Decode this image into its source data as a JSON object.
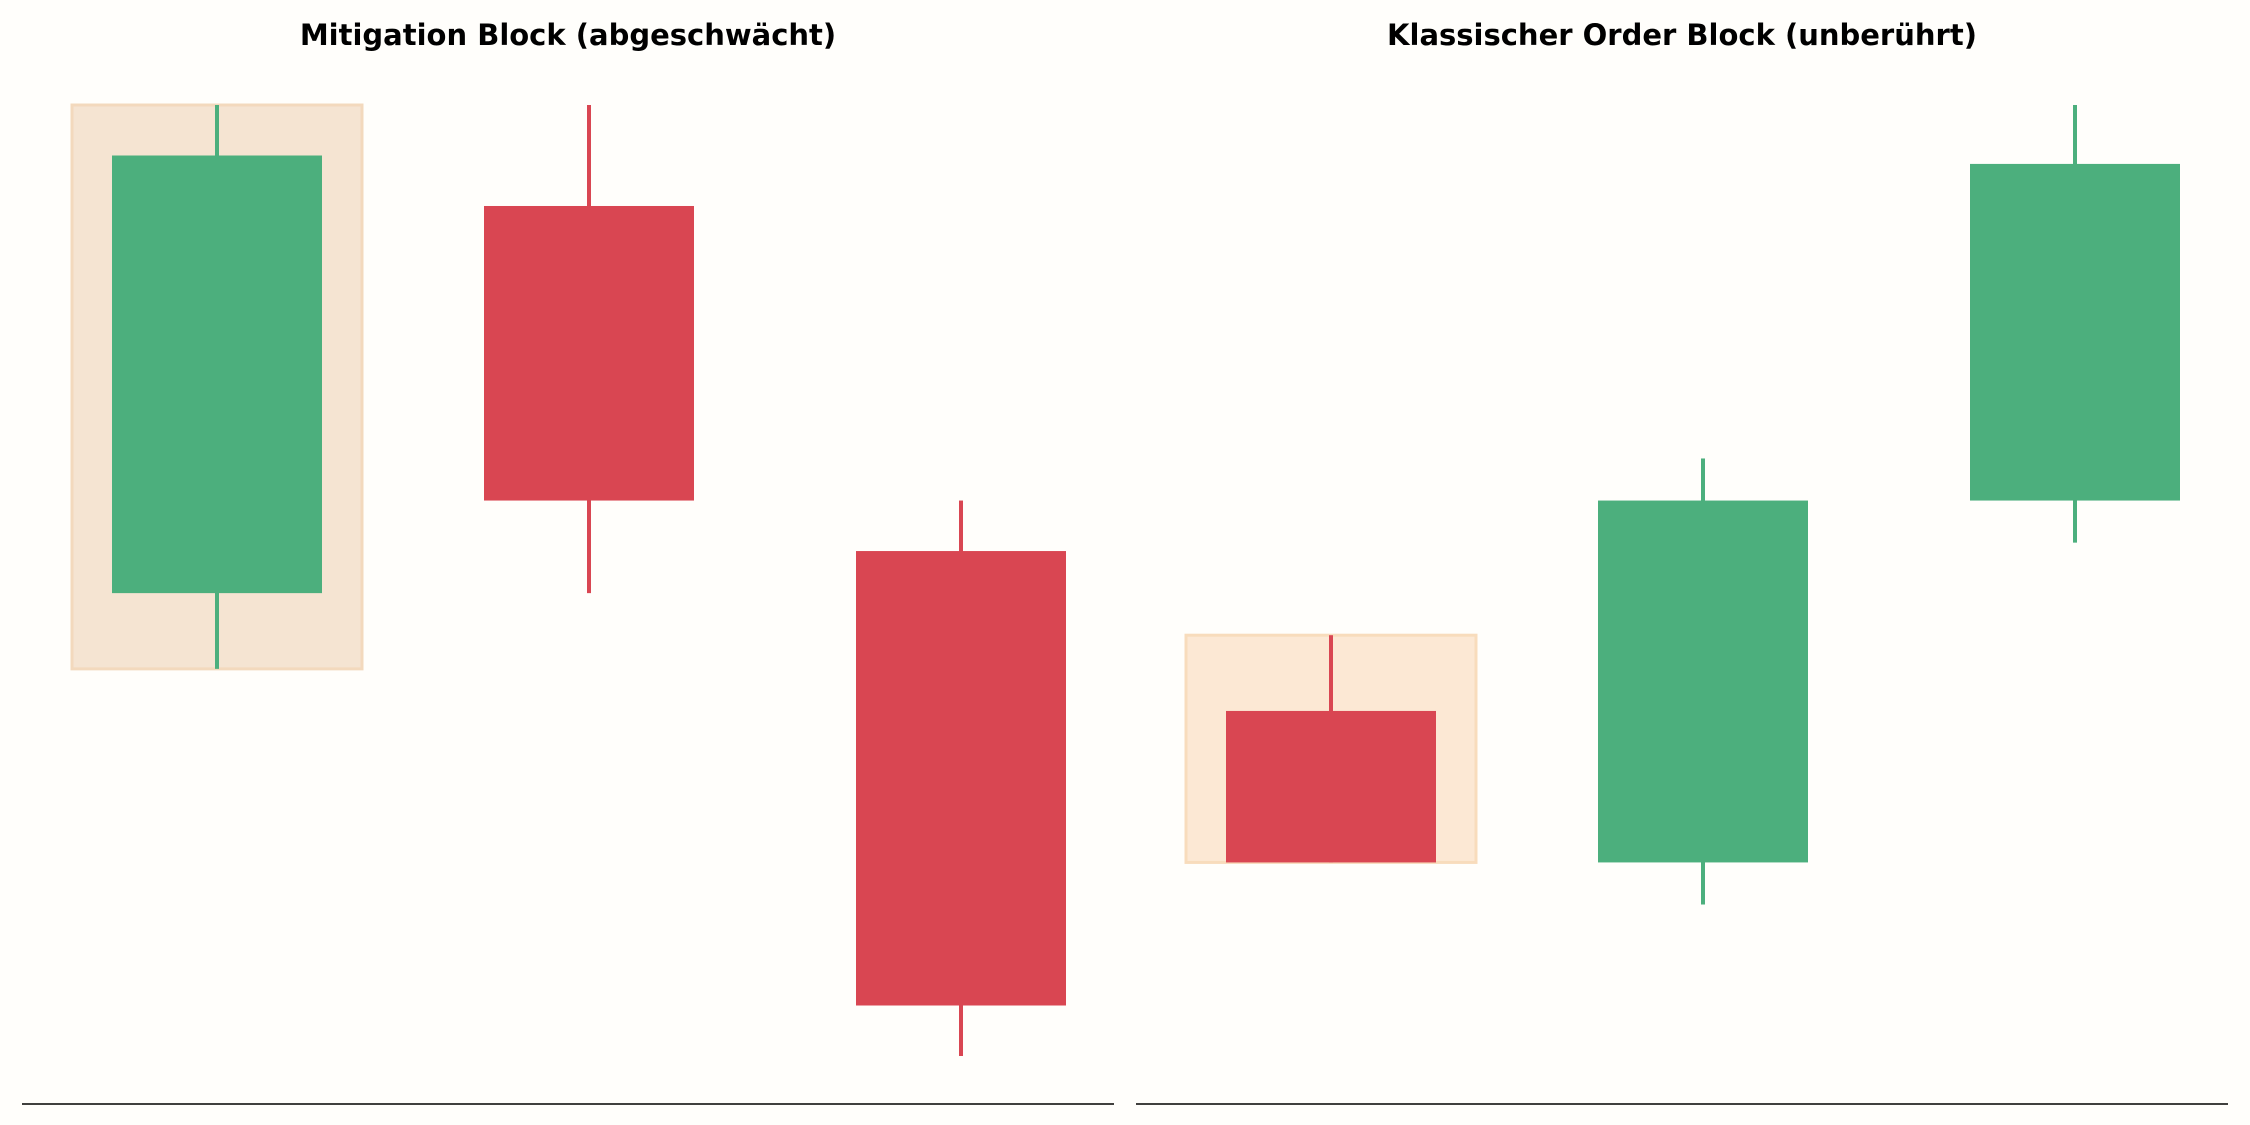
{
  "colors": {
    "background": "#fffefb",
    "bullish": "#4caf7d",
    "bearish": "#d94652",
    "zone_left_fill": "#f5e4d2",
    "zone_left_stroke": "#f3d9bd",
    "zone_right_fill": "#fce8d4",
    "zone_right_stroke": "#f8dcbc",
    "axis": "#000000"
  },
  "chart_data": [
    {
      "type": "candlestick",
      "title": "Mitigation Block (abgeschwächt)",
      "ylim": [
        0,
        100
      ],
      "candles": [
        {
          "open": 32,
          "high": 90,
          "low": 23,
          "close": 84
        },
        {
          "open": 78,
          "high": 90,
          "low": 32,
          "close": 43
        },
        {
          "open": 37,
          "high": 43,
          "low": -23,
          "close": -17
        }
      ],
      "highlight_zone": {
        "candle_index": 0,
        "top": 90,
        "bottom": 23
      }
    },
    {
      "type": "candlestick",
      "title": "Klassischer Order Block (unberührt)",
      "ylim": [
        0,
        100
      ],
      "candles": [
        {
          "open": 18,
          "high": 27,
          "low": 0,
          "close": 0
        },
        {
          "open": 0,
          "high": 48,
          "low": -5,
          "close": 43
        },
        {
          "open": 43,
          "high": 90,
          "low": 38,
          "close": 83
        }
      ],
      "highlight_zone": {
        "candle_index": 0,
        "top": 27,
        "bottom": 0
      }
    }
  ]
}
